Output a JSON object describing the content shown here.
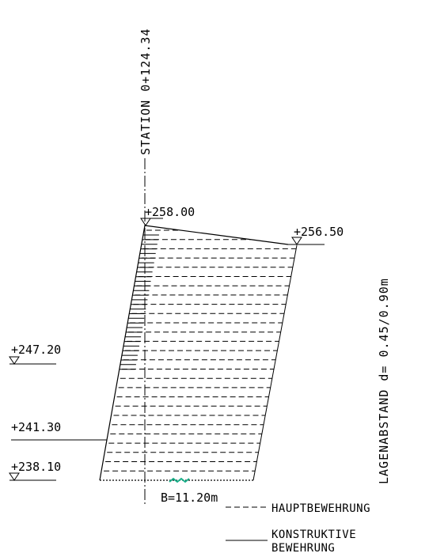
{
  "station_label": "STATION 0+124.34",
  "elevations": {
    "crest": "+258.00",
    "top_right": "+256.50",
    "level_1": "+247.20",
    "level_2": "+241.30",
    "base": "+238.10"
  },
  "width_label": "B=11.20m",
  "layer_spacing_label": "LAGENABSTAND d= 0.45/0.90m",
  "legend": {
    "main_reinforcement": "HAUPTBEWEHRUNG",
    "constructive_line1": "KONSTRUKTIVE",
    "constructive_line2": "BEWEHRUNG"
  },
  "colors": {
    "line": "#000000",
    "accent": "#19b08a",
    "background": "#ffffff"
  }
}
